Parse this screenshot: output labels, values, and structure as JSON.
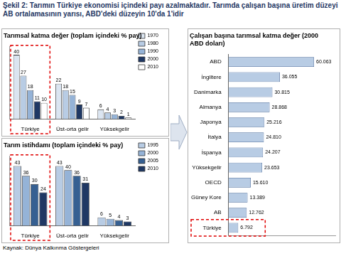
{
  "title": "Şekil 2: Tarımın Türkiye ekonomisi içindeki payı azalmaktadır. Tarımda çalışan başına üretim düzeyi AB ortalamasının yarısı, ABD'deki düzeyin 10'da 1'idir",
  "source": "Kaynak: Dünya Kalkınma Göstergeleri",
  "chart_data": [
    {
      "type": "bar",
      "title": "Tarımsal katma değer (toplam içindeki % pay)",
      "categories": [
        "Türkiye",
        "Üst-orta gelir",
        "Yüksekgelir"
      ],
      "series": [
        {
          "name": "1970",
          "color": "#dbe5f1",
          "values": [
            40,
            22,
            6
          ]
        },
        {
          "name": "1980",
          "color": "#b8cce4",
          "values": [
            27,
            18,
            4
          ]
        },
        {
          "name": "1990",
          "color": "#95b3d7",
          "values": [
            18,
            15,
            3
          ]
        },
        {
          "name": "2000",
          "color": "#1f3864",
          "values": [
            11,
            9,
            2
          ]
        },
        {
          "name": "2010",
          "color": "#ffffff",
          "values": [
            10,
            7,
            1
          ]
        }
      ],
      "ylim": [
        0,
        45
      ],
      "grid": false,
      "legend": "right",
      "data_labels": true,
      "tick_labels": "x"
    },
    {
      "type": "bar",
      "title": "Tarım istihdamı (toplam içindeki % pay)",
      "categories": [
        "Türkiye",
        "Üst-orta gelir",
        "Yüksekgelir"
      ],
      "series": [
        {
          "name": "1995",
          "color": "#b8cce4",
          "values": [
            43,
            43,
            6
          ]
        },
        {
          "name": "2000",
          "color": "#95b3d7",
          "values": [
            36,
            40,
            5
          ]
        },
        {
          "name": "2005",
          "color": "#366092",
          "values": [
            30,
            36,
            4
          ]
        },
        {
          "name": "2010",
          "color": "#1f3864",
          "values": [
            24,
            31,
            3
          ]
        }
      ],
      "ylim": [
        0,
        50
      ],
      "grid": false,
      "legend": "right",
      "data_labels": true,
      "tick_labels": "x"
    },
    {
      "type": "bar",
      "orientation": "horizontal",
      "title": [
        "Çalışan başına tarımsal katma değer (2000",
        "ABD doları)"
      ],
      "categories": [
        "ABD",
        "İngiltere",
        "Danimarka",
        "Almanya",
        "Japonya",
        "İtalya",
        "İspanya",
        "Yüksekgelir",
        "OECD",
        "Güney Kore",
        "AB",
        "Türkiye"
      ],
      "values": [
        60063,
        36055,
        30815,
        28868,
        25216,
        24810,
        24207,
        23653,
        15610,
        13389,
        12762,
        6792
      ],
      "value_labels": [
        "60.063",
        "36.055",
        "30.815",
        "28.868",
        "25.216",
        "24.810",
        "24.207",
        "23.653",
        "15.610",
        "13.389",
        "12.762",
        "6.792"
      ],
      "color": "#b8cce4",
      "xlim": [
        0,
        75000
      ],
      "grid": false,
      "data_labels": true,
      "tick_labels": "y"
    }
  ]
}
